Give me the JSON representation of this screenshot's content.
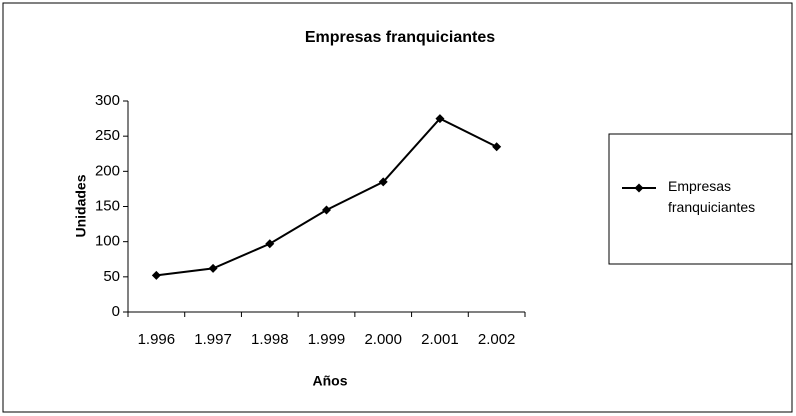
{
  "chart_data": {
    "type": "line",
    "title": "Empresas franquiciantes",
    "xlabel": "Años",
    "ylabel": "Unidades",
    "categories": [
      "1.996",
      "1.997",
      "1.998",
      "1.999",
      "2.000",
      "2.001",
      "2.002"
    ],
    "series": [
      {
        "name": "Empresas franquiciantes",
        "color": "#000000",
        "values": [
          52,
          62,
          97,
          145,
          185,
          275,
          235
        ]
      }
    ],
    "ylim": [
      0,
      300
    ],
    "yticks": [
      0,
      50,
      100,
      150,
      200,
      250,
      300
    ],
    "grid": false,
    "legend": "right"
  }
}
